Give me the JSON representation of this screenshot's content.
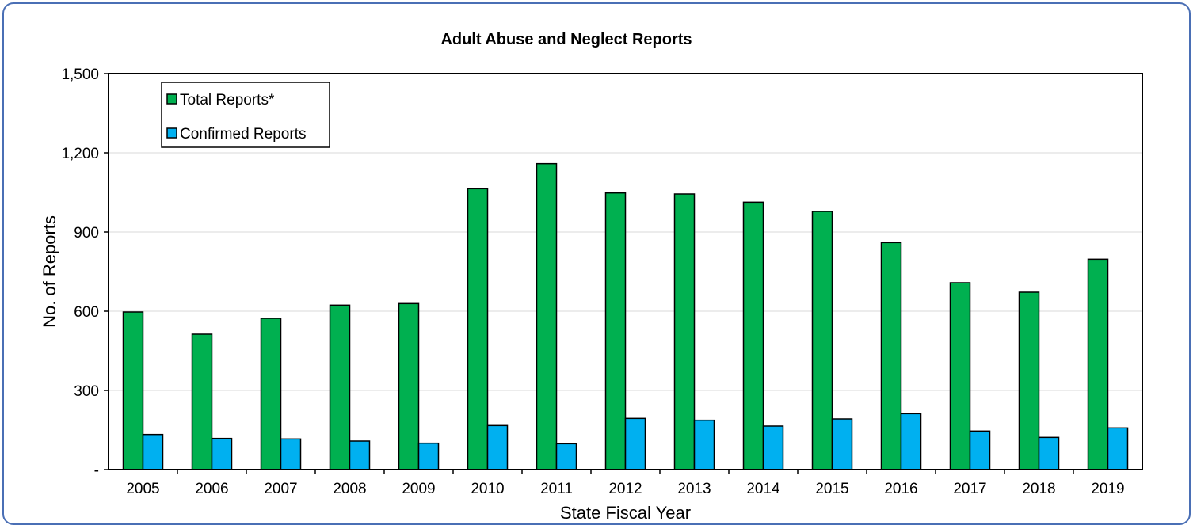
{
  "chart_data": {
    "type": "bar",
    "title": "Adult Abuse and Neglect Reports",
    "xlabel": "State Fiscal Year",
    "ylabel": "No. of Reports",
    "categories": [
      "2005",
      "2006",
      "2007",
      "2008",
      "2009",
      "2010",
      "2011",
      "2012",
      "2013",
      "2014",
      "2015",
      "2016",
      "2017",
      "2018",
      "2019"
    ],
    "series": [
      {
        "name": "Total Reports*",
        "color": "#00b050",
        "values": [
          597,
          513,
          573,
          623,
          629,
          1064,
          1159,
          1048,
          1044,
          1013,
          978,
          860,
          708,
          672,
          797
        ]
      },
      {
        "name": "Confirmed Reports",
        "color": "#00b0f0",
        "values": [
          133,
          118,
          116,
          108,
          100,
          167,
          98,
          194,
          187,
          165,
          192,
          212,
          146,
          122,
          158
        ]
      }
    ],
    "ylim": [
      0,
      1500
    ],
    "yticks": [
      0,
      300,
      600,
      900,
      1200,
      1500
    ],
    "ytick_labels": [
      "-",
      "300",
      "600",
      "900",
      "1,200",
      "1,500"
    ],
    "grid": true,
    "legend_position": "top-left"
  }
}
